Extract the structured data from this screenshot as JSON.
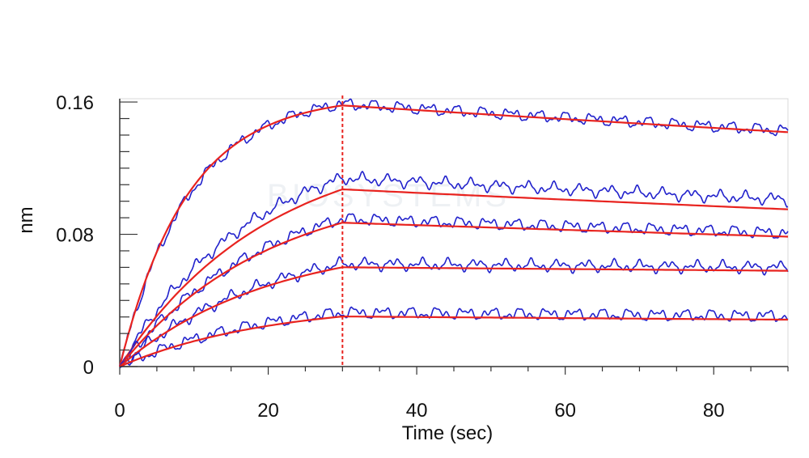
{
  "chart_data": {
    "type": "line",
    "title": "",
    "xlabel": "Time (sec)",
    "ylabel": "nm",
    "xlim": [
      0,
      90
    ],
    "ylim": [
      0,
      0.162
    ],
    "x_ticks": [
      0,
      20,
      40,
      60,
      80
    ],
    "x_tick_labels": [
      "0",
      "20",
      "40",
      "60",
      "80"
    ],
    "y_ticks": [
      0,
      0.08,
      0.16
    ],
    "y_tick_labels": [
      "0",
      "0.08",
      "0.16"
    ],
    "grid": false,
    "legend": "none",
    "watermark": "BIOSYSTEMS",
    "dissociation_start": 30,
    "colors": {
      "measured": "#2222cc",
      "fit": "#e8231f",
      "marker": "#e8231f",
      "axis": "#333333"
    },
    "series": [
      {
        "type": "measured",
        "plateau": 0.166,
        "k_on": 0.105,
        "k_off": 0.0018
      },
      {
        "type": "fit",
        "plateau": 0.164,
        "k_on": 0.11,
        "k_off": 0.0018
      },
      {
        "type": "measured",
        "plateau": 0.141,
        "k_on": 0.055,
        "k_off": 0.002
      },
      {
        "type": "fit",
        "plateau": 0.138,
        "k_on": 0.05,
        "k_off": 0.002
      },
      {
        "type": "measured",
        "plateau": 0.115,
        "k_on": 0.05,
        "k_off": 0.0017
      },
      {
        "type": "fit",
        "plateau": 0.112,
        "k_on": 0.05,
        "k_off": 0.0017
      },
      {
        "type": "measured",
        "plateau": 0.08,
        "k_on": 0.05,
        "k_off": 0.0006
      },
      {
        "type": "fit",
        "plateau": 0.0773,
        "k_on": 0.05,
        "k_off": 0.0006
      },
      {
        "type": "measured",
        "plateau": 0.042,
        "k_on": 0.05,
        "k_off": 0.0011
      },
      {
        "type": "fit",
        "plateau": 0.039,
        "k_on": 0.05,
        "k_off": 0.0011
      }
    ]
  }
}
